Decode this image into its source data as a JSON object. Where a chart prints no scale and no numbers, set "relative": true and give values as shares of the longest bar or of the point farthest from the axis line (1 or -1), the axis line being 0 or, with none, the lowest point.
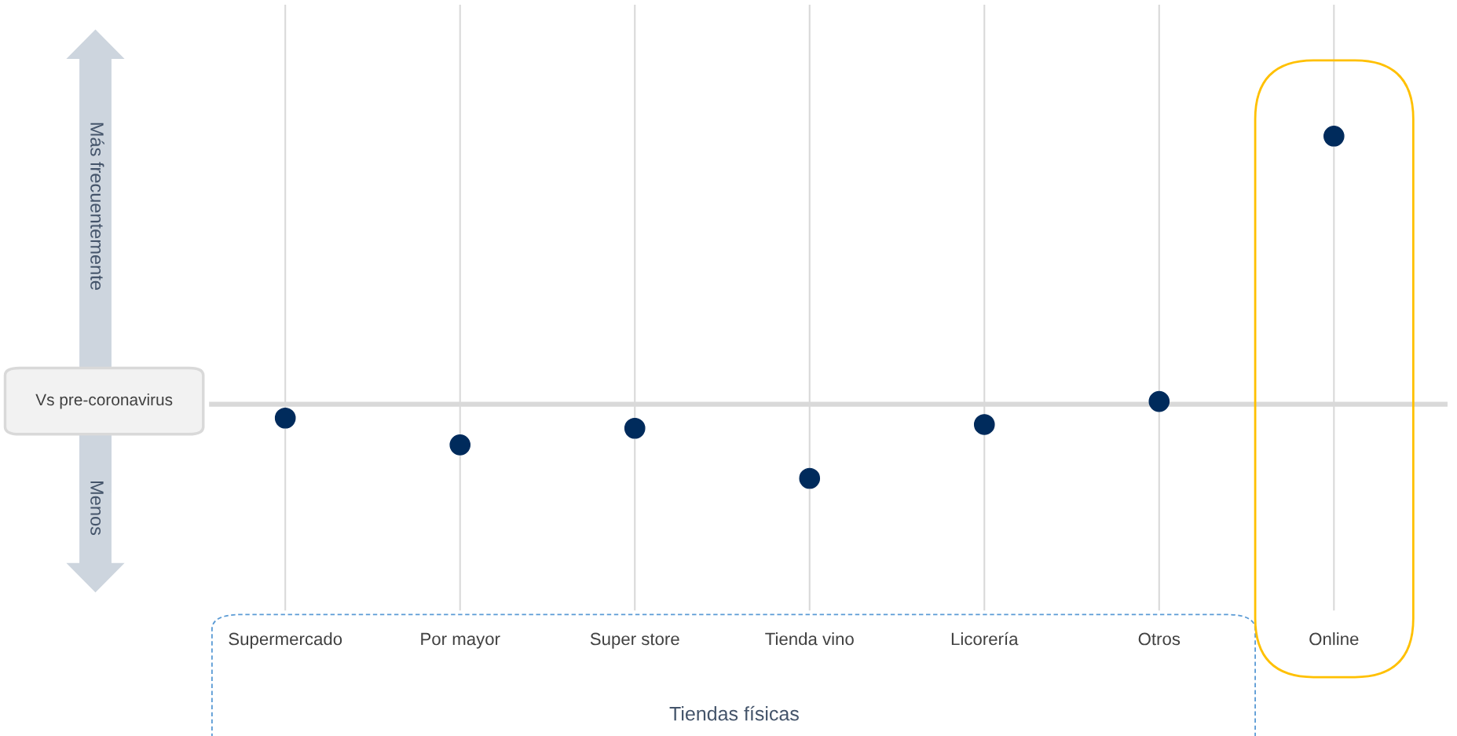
{
  "chart_data": {
    "type": "scatter",
    "categories": [
      "Supermercado",
      "Por mayor",
      "Super store",
      "Tienda vino",
      "Licorería",
      "Otros",
      "Online"
    ],
    "values": [
      -0.052,
      -0.152,
      -0.09,
      -0.277,
      -0.076,
      0.01,
      1
    ],
    "color": "#002b5c",
    "relative": true,
    "marker": "circle",
    "grid": "x",
    "annotations": [
      "Vs pre-coronavirus",
      "Menos",
      "Tiendas físicas",
      "Más frecuentemente"
    ],
    "ref_lines": [
      {
        "axis": "y",
        "value": 0,
        "color": "#d9d9d9"
      }
    ]
  }
}
